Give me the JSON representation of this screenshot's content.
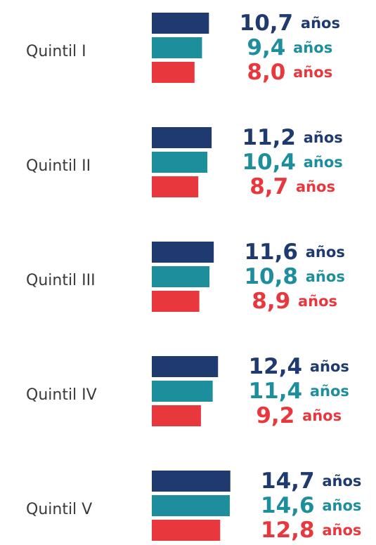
{
  "chart_data": {
    "type": "bar",
    "orientation": "horizontal",
    "categories": [
      "Quintil I",
      "Quintil II",
      "Quintil III",
      "Quintil IV",
      "Quintil V"
    ],
    "series": [
      {
        "color": "#1e3a6e",
        "values": [
          10.7,
          11.2,
          11.6,
          12.4,
          14.7
        ],
        "value_labels": [
          "10,7 años",
          "11,2 años",
          "11,6 años",
          "12,4 años",
          "14,7 años"
        ]
      },
      {
        "color": "#1d8e9b",
        "values": [
          9.4,
          10.4,
          10.8,
          11.4,
          14.6
        ],
        "value_labels": [
          "9,4 años",
          "10,4 años",
          "10,8 años",
          "11,4 años",
          "14,6 años"
        ]
      },
      {
        "color": "#e8373d",
        "values": [
          8.0,
          8.7,
          8.9,
          9.2,
          12.8
        ],
        "value_labels": [
          "8,0 años",
          "8,7 años",
          "8,9 años",
          "9,2 años",
          "12,8 años"
        ]
      }
    ],
    "xlim": [
      0,
      20
    ]
  }
}
